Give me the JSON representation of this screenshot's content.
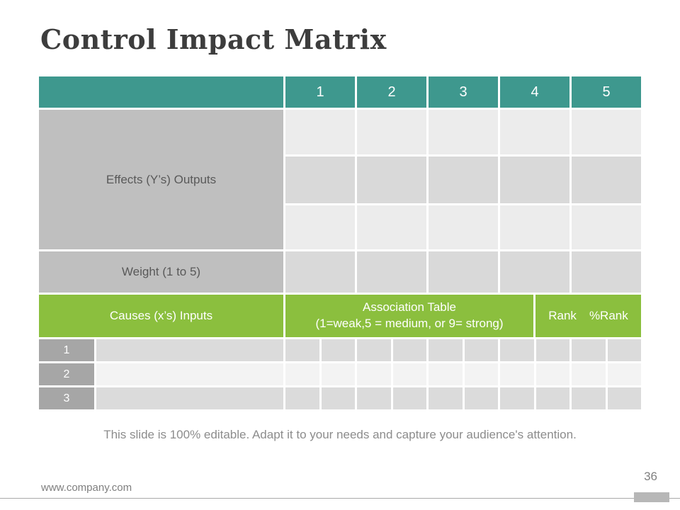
{
  "slide": {
    "title": "Control Impact Matrix",
    "note": "This slide is 100% editable. Adapt it to your needs and capture your audience's attention."
  },
  "table": {
    "header": {
      "columns": [
        "1",
        "2",
        "3",
        "4",
        "5"
      ]
    },
    "effects_label": "Effects (Y’s) Outputs",
    "weight_label": "Weight (1 to 5)",
    "causes_label": "Causes (x’s) Inputs",
    "association_title": "Association Table",
    "association_subtitle": "(1=weak,5 = medium, or 9= strong)",
    "rank_label": "Rank",
    "percent_rank_label": "%Rank",
    "rows": [
      "1",
      "2",
      "3"
    ]
  },
  "footer": {
    "website": "www.company.com",
    "page_number": "36"
  },
  "colors": {
    "teal_header": "#3E988E",
    "green_band": "#8BBF3E",
    "label_gray": "#BFBFBF",
    "row_number_gray": "#A6A6A6",
    "cell_light": "#ECECEC",
    "cell_dark": "#D9D9D9",
    "title_text": "#3D3D3D",
    "note_text": "#8C8C8C"
  }
}
